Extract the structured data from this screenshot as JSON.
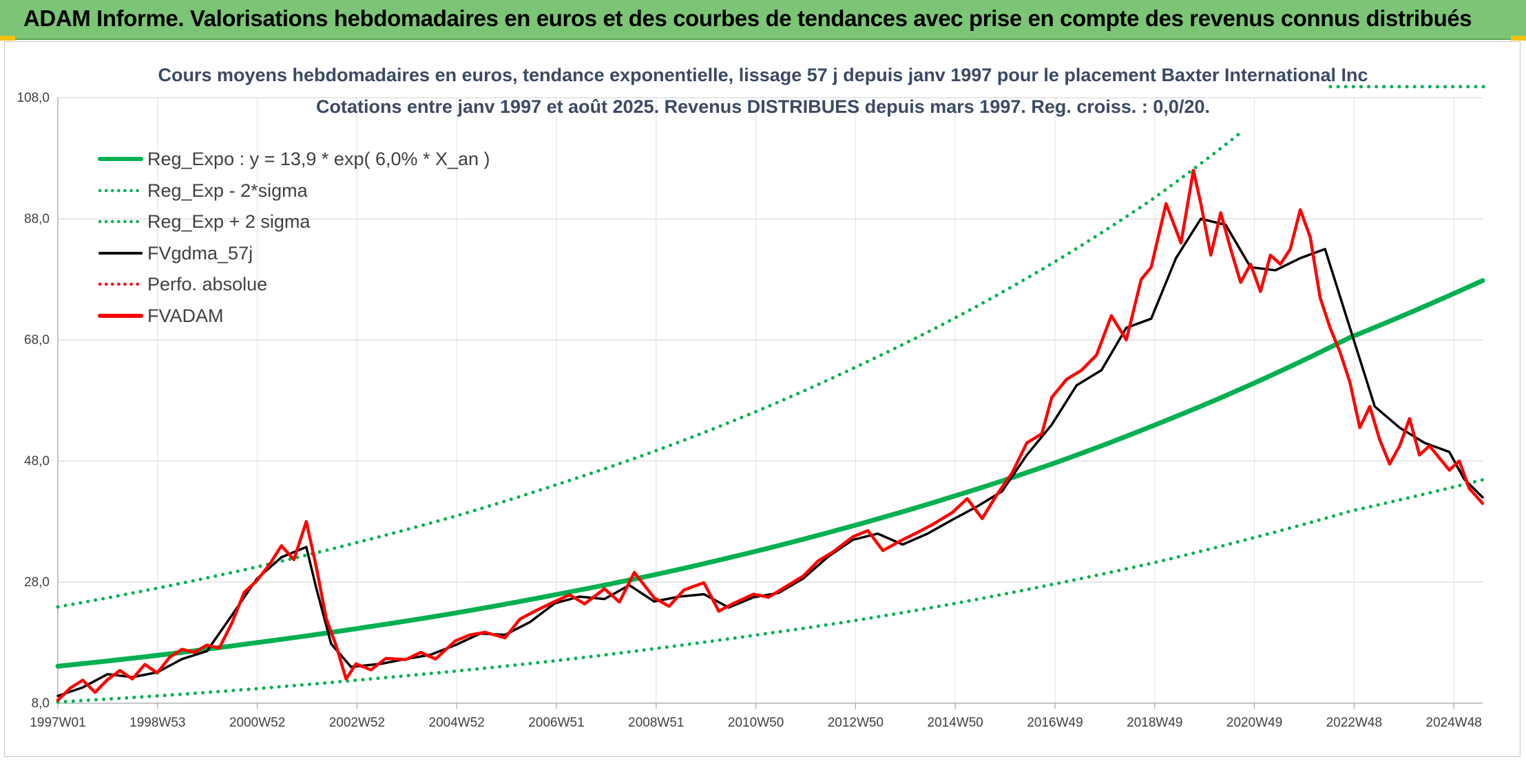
{
  "banner": {
    "text": "ADAM Informe. Valorisations hebdomadaires en euros et des courbes de tendances avec prise en compte des revenus connus distribués",
    "color": "#7cc576"
  },
  "chart_data": {
    "type": "line",
    "title_line1": "Cours moyens hebdomadaires en euros, tendance exponentielle, lissage 57 j depuis janv 1997 pour le placement Baxter International Inc",
    "title_line2": "Cotations entre janv 1997 et août 2025. Revenus DISTRIBUES depuis mars 1997. Reg. croiss. : 0,0/20.",
    "y_ticks": [
      "8,0",
      "28,0",
      "48,0",
      "68,0",
      "88,0",
      "108,0"
    ],
    "ylim": [
      8,
      108
    ],
    "x_ticks": [
      "1997W01",
      "1998W53",
      "2000W52",
      "2002W52",
      "2004W52",
      "2006W51",
      "2008W51",
      "2010W50",
      "2012W50",
      "2014W50",
      "2016W49",
      "2018W49",
      "2020W49",
      "2022W48",
      "2024W48"
    ],
    "x_range": [
      "1997W01",
      "2025W35"
    ],
    "grid": true,
    "legend_position": "top-left",
    "legend": [
      {
        "label": "Reg_Expo : y = 13,9 * exp( 6,0% *  X_an )",
        "color": "#00b050",
        "style": "solid-thick"
      },
      {
        "label": "Reg_Exp - 2*sigma",
        "color": "#00b050",
        "style": "dotted"
      },
      {
        "label": "Reg_Exp + 2 sigma",
        "color": "#00b050",
        "style": "dotted"
      },
      {
        "label": "FVgdma_57j",
        "color": "#000000",
        "style": "solid"
      },
      {
        "label": "Perfo. absolue",
        "color": "#ff0000",
        "style": "dotted"
      },
      {
        "label": "FVADAM",
        "color": "#ff0000",
        "style": "solid-thick"
      }
    ],
    "series": [
      {
        "name": "Reg_Expo : y = 13,9 * exp( 6,0% *  X_an )",
        "color": "#00b050",
        "points": [
          [
            1997.0,
            14.1
          ],
          [
            1999.0,
            15.9
          ],
          [
            2001.0,
            18.0
          ],
          [
            2003.0,
            20.3
          ],
          [
            2005.0,
            22.9
          ],
          [
            2007.0,
            25.9
          ],
          [
            2009.0,
            29.2
          ],
          [
            2011.0,
            33.0
          ],
          [
            2013.0,
            37.3
          ],
          [
            2015.0,
            42.1
          ],
          [
            2017.0,
            47.5
          ],
          [
            2019.0,
            53.7
          ],
          [
            2021.0,
            60.6
          ],
          [
            2023.0,
            68.4
          ],
          [
            2025.67,
            77.8
          ]
        ]
      },
      {
        "name": "Reg_Exp - 2*sigma",
        "color": "#00b050",
        "points": [
          [
            1997.0,
            8.2
          ],
          [
            1999.0,
            9.2
          ],
          [
            2001.0,
            10.4
          ],
          [
            2003.0,
            11.8
          ],
          [
            2005.0,
            13.3
          ],
          [
            2007.0,
            15.0
          ],
          [
            2009.0,
            17.0
          ],
          [
            2011.0,
            19.2
          ],
          [
            2013.0,
            21.6
          ],
          [
            2015.0,
            24.4
          ],
          [
            2017.0,
            27.6
          ],
          [
            2019.0,
            31.1
          ],
          [
            2021.0,
            35.2
          ],
          [
            2023.0,
            39.7
          ],
          [
            2025.67,
            44.9
          ]
        ]
      },
      {
        "name": "Reg_Exp + 2 sigma",
        "color": "#00b050",
        "points": [
          [
            1997.0,
            23.9
          ],
          [
            1999.0,
            27.0
          ],
          [
            2001.0,
            30.5
          ],
          [
            2003.0,
            34.5
          ],
          [
            2005.0,
            38.9
          ],
          [
            2007.0,
            44.0
          ],
          [
            2009.0,
            49.6
          ],
          [
            2011.0,
            56.0
          ],
          [
            2013.0,
            63.3
          ],
          [
            2015.0,
            71.4
          ],
          [
            2017.0,
            80.6
          ],
          [
            2019.0,
            91.1
          ],
          [
            2020.75,
            101.9
          ]
        ]
      },
      {
        "name": "FVgdma_57j",
        "color": "#000000",
        "points": [
          [
            1997.0,
            9.2
          ],
          [
            1997.5,
            10.6
          ],
          [
            1998.0,
            12.8
          ],
          [
            1998.5,
            12.3
          ],
          [
            1999.0,
            13.1
          ],
          [
            1999.5,
            15.3
          ],
          [
            2000.0,
            16.6
          ],
          [
            2000.5,
            22.5
          ],
          [
            2001.0,
            28.5
          ],
          [
            2001.5,
            32.1
          ],
          [
            2002.0,
            33.8
          ],
          [
            2002.2,
            27.0
          ],
          [
            2002.5,
            17.8
          ],
          [
            2002.9,
            14.0
          ],
          [
            2003.5,
            14.5
          ],
          [
            2004.0,
            15.3
          ],
          [
            2004.5,
            16.0
          ],
          [
            2005.0,
            17.6
          ],
          [
            2005.5,
            19.5
          ],
          [
            2006.0,
            19.3
          ],
          [
            2006.5,
            21.4
          ],
          [
            2007.0,
            24.5
          ],
          [
            2007.5,
            25.6
          ],
          [
            2008.0,
            25.2
          ],
          [
            2008.5,
            27.5
          ],
          [
            2009.0,
            24.8
          ],
          [
            2009.5,
            25.6
          ],
          [
            2010.0,
            26.0
          ],
          [
            2010.5,
            23.8
          ],
          [
            2011.0,
            25.5
          ],
          [
            2011.5,
            26.2
          ],
          [
            2012.0,
            28.6
          ],
          [
            2012.5,
            32.2
          ],
          [
            2013.0,
            35.0
          ],
          [
            2013.5,
            36.0
          ],
          [
            2014.0,
            34.2
          ],
          [
            2014.5,
            36.0
          ],
          [
            2015.0,
            38.3
          ],
          [
            2015.5,
            40.5
          ],
          [
            2016.0,
            43.0
          ],
          [
            2016.5,
            49.0
          ],
          [
            2017.0,
            54.0
          ],
          [
            2017.5,
            60.5
          ],
          [
            2018.0,
            63.0
          ],
          [
            2018.5,
            70.0
          ],
          [
            2019.0,
            71.5
          ],
          [
            2019.5,
            81.5
          ],
          [
            2020.0,
            88.0
          ],
          [
            2020.5,
            87.0
          ],
          [
            2021.0,
            80.0
          ],
          [
            2021.5,
            79.5
          ],
          [
            2022.0,
            81.5
          ],
          [
            2022.5,
            83.0
          ],
          [
            2023.0,
            70.0
          ],
          [
            2023.5,
            57.0
          ],
          [
            2024.0,
            53.5
          ],
          [
            2024.5,
            51.0
          ],
          [
            2025.0,
            49.5
          ],
          [
            2025.3,
            45.0
          ],
          [
            2025.67,
            42.0
          ]
        ]
      },
      {
        "name": "FVADAM",
        "color": "#ff0000",
        "points": [
          [
            1997.0,
            8.5
          ],
          [
            1997.25,
            10.5
          ],
          [
            1997.5,
            11.8
          ],
          [
            1997.75,
            9.8
          ],
          [
            1998.0,
            11.9
          ],
          [
            1998.25,
            13.4
          ],
          [
            1998.5,
            12.0
          ],
          [
            1998.75,
            14.4
          ],
          [
            1999.0,
            13.0
          ],
          [
            1999.25,
            15.6
          ],
          [
            1999.5,
            16.9
          ],
          [
            1999.75,
            16.4
          ],
          [
            2000.0,
            17.6
          ],
          [
            2000.25,
            17.1
          ],
          [
            2000.5,
            21.2
          ],
          [
            2000.75,
            26.3
          ],
          [
            2001.0,
            28.2
          ],
          [
            2001.25,
            30.8
          ],
          [
            2001.5,
            34.0
          ],
          [
            2001.75,
            31.7
          ],
          [
            2002.0,
            38.0
          ],
          [
            2002.2,
            30.5
          ],
          [
            2002.4,
            22.0
          ],
          [
            2002.6,
            17.5
          ],
          [
            2002.8,
            12.0
          ],
          [
            2003.0,
            14.5
          ],
          [
            2003.3,
            13.5
          ],
          [
            2003.6,
            15.4
          ],
          [
            2004.0,
            15.2
          ],
          [
            2004.3,
            16.4
          ],
          [
            2004.6,
            15.3
          ],
          [
            2005.0,
            18.3
          ],
          [
            2005.3,
            19.3
          ],
          [
            2005.6,
            19.7
          ],
          [
            2006.0,
            18.8
          ],
          [
            2006.3,
            21.9
          ],
          [
            2006.6,
            23.2
          ],
          [
            2007.0,
            24.8
          ],
          [
            2007.3,
            25.9
          ],
          [
            2007.6,
            24.4
          ],
          [
            2008.0,
            26.9
          ],
          [
            2008.3,
            24.7
          ],
          [
            2008.6,
            29.6
          ],
          [
            2009.0,
            25.4
          ],
          [
            2009.3,
            24.0
          ],
          [
            2009.6,
            26.7
          ],
          [
            2010.0,
            27.9
          ],
          [
            2010.3,
            23.2
          ],
          [
            2010.6,
            24.5
          ],
          [
            2011.0,
            26.0
          ],
          [
            2011.3,
            25.5
          ],
          [
            2011.6,
            27.0
          ],
          [
            2012.0,
            29.0
          ],
          [
            2012.3,
            31.5
          ],
          [
            2012.6,
            33.0
          ],
          [
            2013.0,
            35.5
          ],
          [
            2013.3,
            36.5
          ],
          [
            2013.6,
            33.2
          ],
          [
            2014.0,
            35.0
          ],
          [
            2014.3,
            36.2
          ],
          [
            2014.6,
            37.5
          ],
          [
            2015.0,
            39.5
          ],
          [
            2015.3,
            41.8
          ],
          [
            2015.6,
            38.5
          ],
          [
            2015.9,
            42.5
          ],
          [
            2016.2,
            46.0
          ],
          [
            2016.5,
            51.0
          ],
          [
            2016.8,
            52.5
          ],
          [
            2017.0,
            58.5
          ],
          [
            2017.3,
            61.5
          ],
          [
            2017.6,
            63.0
          ],
          [
            2017.9,
            65.5
          ],
          [
            2018.2,
            72.0
          ],
          [
            2018.5,
            68.0
          ],
          [
            2018.8,
            78.0
          ],
          [
            2019.0,
            80.0
          ],
          [
            2019.3,
            90.5
          ],
          [
            2019.6,
            84.0
          ],
          [
            2019.85,
            96.0
          ],
          [
            2020.0,
            90.5
          ],
          [
            2020.2,
            82.0
          ],
          [
            2020.4,
            89.0
          ],
          [
            2020.6,
            83.0
          ],
          [
            2020.8,
            77.5
          ],
          [
            2021.0,
            80.5
          ],
          [
            2021.2,
            76.0
          ],
          [
            2021.4,
            82.0
          ],
          [
            2021.6,
            80.5
          ],
          [
            2021.8,
            83.0
          ],
          [
            2022.0,
            89.5
          ],
          [
            2022.2,
            85.0
          ],
          [
            2022.4,
            75.0
          ],
          [
            2022.6,
            70.0
          ],
          [
            2022.8,
            66.0
          ],
          [
            2023.0,
            61.0
          ],
          [
            2023.2,
            53.5
          ],
          [
            2023.4,
            57.0
          ],
          [
            2023.6,
            51.5
          ],
          [
            2023.8,
            47.5
          ],
          [
            2024.0,
            50.5
          ],
          [
            2024.2,
            55.0
          ],
          [
            2024.4,
            49.0
          ],
          [
            2024.6,
            50.5
          ],
          [
            2024.8,
            48.5
          ],
          [
            2025.0,
            46.5
          ],
          [
            2025.2,
            48.0
          ],
          [
            2025.4,
            43.5
          ],
          [
            2025.67,
            41.0
          ]
        ]
      }
    ]
  }
}
